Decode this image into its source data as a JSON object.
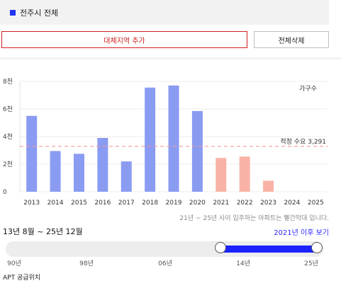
{
  "region": {
    "label": "전주시 전체",
    "color": "#2233ee"
  },
  "buttons": {
    "add_region": "대체지역 추가",
    "delete_all": "전체삭제"
  },
  "chart_data": {
    "type": "bar",
    "categories": [
      "2013",
      "2014",
      "2015",
      "2016",
      "2017",
      "2018",
      "2019",
      "2020",
      "2021",
      "2022",
      "2023",
      "2024",
      "2025"
    ],
    "values": [
      5500,
      2950,
      2750,
      3900,
      2200,
      7550,
      7700,
      5850,
      2450,
      2550,
      800,
      0,
      0
    ],
    "bar_colors": [
      "#8a9bf2",
      "#8a9bf2",
      "#8a9bf2",
      "#8a9bf2",
      "#8a9bf2",
      "#8a9bf2",
      "#8a9bf2",
      "#8a9bf2",
      "#f9b3a6",
      "#f9b3a6",
      "#f9b3a6",
      "#f9b3a6",
      "#f9b3a6"
    ],
    "ylim": [
      0,
      8000
    ],
    "y_ticks": [
      0,
      2000,
      4000,
      6000,
      8000
    ],
    "y_tick_labels": [
      "0",
      "2천",
      "4천",
      "6천",
      "8천"
    ],
    "legend": "가구수",
    "reference_line": {
      "value": 3291,
      "label": "적정 수요 3,291",
      "color": "#f29a9a"
    },
    "grid": true
  },
  "chart_note": "21년 ~ 25년 사이 입주하는 아파트는 빨간막대 입니다.",
  "period": {
    "label": "13년 8월 ~ 25년 12월",
    "after_link": "2021년 이후 보기"
  },
  "slider": {
    "ticks": [
      "90년",
      "98년",
      "06년",
      "14년",
      "25년"
    ],
    "start_fraction": 0.68,
    "end_fraction": 0.98
  },
  "supply_location": {
    "label": "APT 공급위치"
  }
}
